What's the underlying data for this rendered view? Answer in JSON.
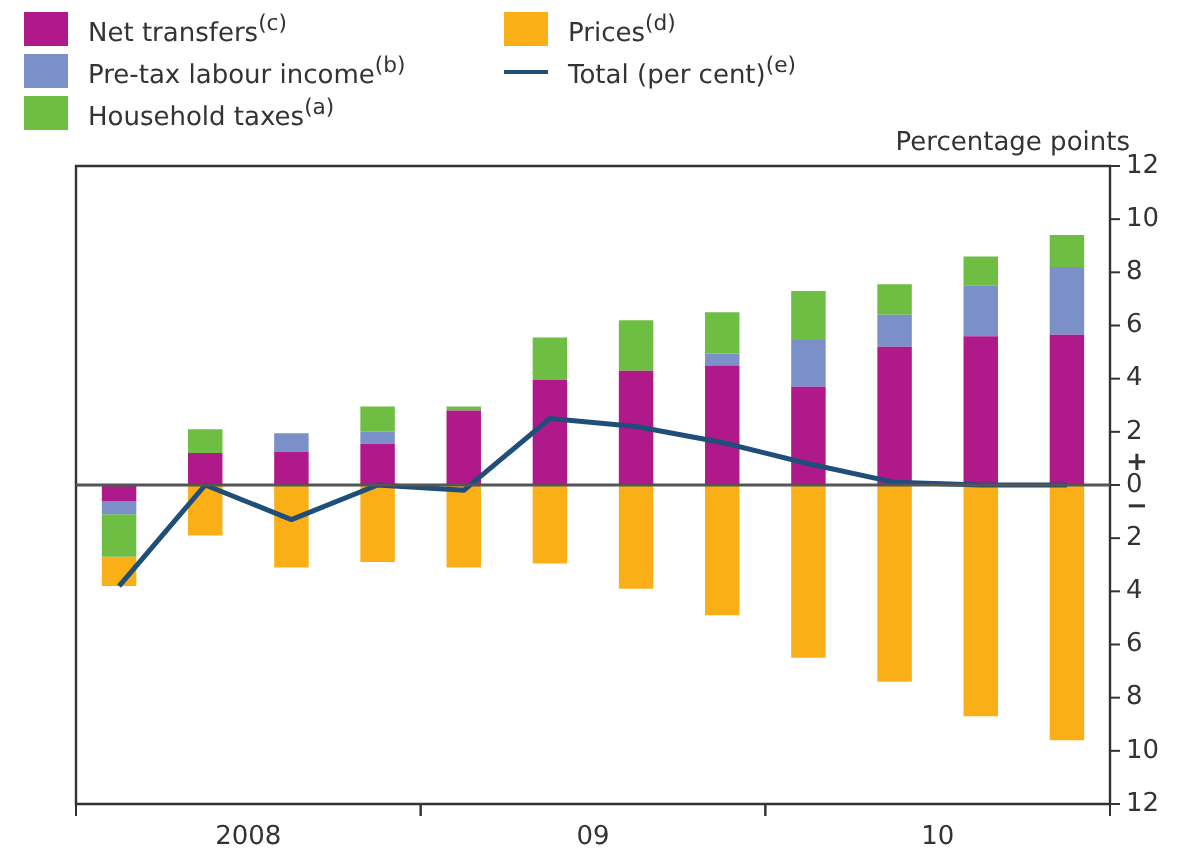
{
  "chart_data": {
    "type": "bar",
    "stacked": true,
    "ylabel": "Percentage points",
    "legend": "top left",
    "categories": [
      null,
      null,
      null,
      null,
      null,
      null,
      null,
      null,
      null,
      null,
      null,
      null
    ],
    "ylim": [
      -12,
      12
    ],
    "yticks": [
      {
        "value": -12,
        "label": "12"
      },
      {
        "value": -10,
        "label": "10"
      },
      {
        "value": -8,
        "label": "8"
      },
      {
        "value": -6,
        "label": "6"
      },
      {
        "value": -4,
        "label": "4"
      },
      {
        "value": -2,
        "label": "2"
      },
      0,
      2,
      4,
      6,
      8,
      10,
      12
    ],
    "annotations": [
      "+",
      "−",
      "2008",
      "09",
      "10"
    ],
    "series": [
      {
        "name": "Net transfers$^{(c)}$",
        "color": "#b0198a",
        "values": [
          -0.6,
          1.2,
          1.25,
          1.55,
          2.8,
          3.95,
          4.3,
          4.5,
          3.7,
          5.2,
          5.6,
          5.65
        ]
      },
      {
        "name": "Pre-tax labour income$^{(b)}$",
        "color": "#7b8fc8",
        "values": [
          -0.5,
          0,
          0.7,
          0.45,
          0,
          0,
          0,
          0.45,
          1.75,
          1.2,
          1.9,
          2.55
        ]
      },
      {
        "name": "Household taxes$^{(a)}$",
        "color": "#6fbe44",
        "values": [
          -1.6,
          0.9,
          0,
          0.95,
          0.15,
          1.6,
          1.9,
          1.55,
          1.85,
          1.15,
          1.1,
          1.2
        ]
      },
      {
        "name": "Prices$^{(d)}$",
        "color": "#fbaf17",
        "values": [
          -1.1,
          -1.9,
          -3.1,
          -2.9,
          -3.1,
          -2.95,
          -3.9,
          -4.9,
          -6.5,
          -7.4,
          -8.7,
          -9.6
        ]
      },
      {
        "name": "Total (per cent)$^{(e)}$",
        "type": "line",
        "color": "#1f4e79",
        "values": [
          -3.8,
          0,
          -1.3,
          0,
          -0.2,
          2.5,
          2.2,
          1.6,
          0.8,
          0.1,
          0,
          0
        ]
      }
    ]
  }
}
